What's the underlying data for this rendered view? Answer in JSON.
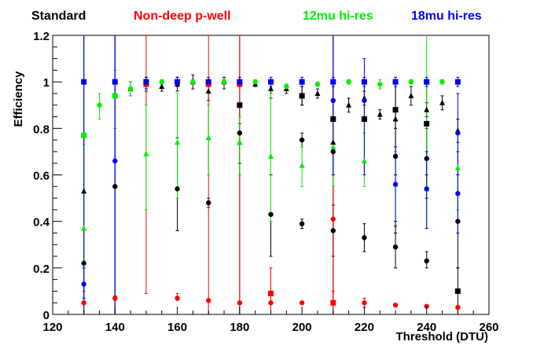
{
  "chart_data": {
    "type": "scatter",
    "xlabel": "Threshold (DTU)",
    "ylabel": "Efficiency",
    "xlim": [
      120,
      260
    ],
    "ylim": [
      0,
      1.2
    ],
    "x_ticks": [
      "120",
      "140",
      "160",
      "180",
      "200",
      "220",
      "240",
      "260"
    ],
    "y_ticks": [
      "0",
      "0.2",
      "0.4",
      "0.6",
      "0.8",
      "1",
      "1.2"
    ],
    "grid": false,
    "legend_position": "top",
    "series": [
      {
        "name": "Standard",
        "color": "#000000",
        "points": [
          {
            "x": 130,
            "y": 0.22,
            "lo": 0.0,
            "hi": 1.2,
            "marker": "circle"
          },
          {
            "x": 140,
            "y": 0.55,
            "lo": 0.0,
            "hi": 1.2,
            "marker": "circle"
          },
          {
            "x": 160,
            "y": 0.54,
            "lo": 0.36,
            "hi": 0.76,
            "marker": "circle"
          },
          {
            "x": 170,
            "y": 0.48,
            "lo": 0.46,
            "hi": 0.5,
            "marker": "circle"
          },
          {
            "x": 180,
            "y": 0.78,
            "lo": 0.6,
            "hi": 0.9,
            "marker": "circle"
          },
          {
            "x": 190,
            "y": 0.43,
            "lo": 0.25,
            "hi": 0.6,
            "marker": "circle"
          },
          {
            "x": 200,
            "y": 0.75,
            "lo": 0.72,
            "hi": 0.78,
            "marker": "circle"
          },
          {
            "x": 200,
            "y": 0.39,
            "lo": 0.37,
            "hi": 0.41,
            "marker": "circle"
          },
          {
            "x": 210,
            "y": 0.7,
            "lo": 0.0,
            "hi": 1.2,
            "marker": "circle"
          },
          {
            "x": 210,
            "y": 0.36,
            "lo": 0.25,
            "hi": 0.47,
            "marker": "circle"
          },
          {
            "x": 220,
            "y": 0.33,
            "lo": 0.27,
            "hi": 0.39,
            "marker": "circle"
          },
          {
            "x": 230,
            "y": 0.68,
            "lo": 0.35,
            "hi": 1.0,
            "marker": "circle"
          },
          {
            "x": 230,
            "y": 0.29,
            "lo": 0.2,
            "hi": 0.38,
            "marker": "circle"
          },
          {
            "x": 240,
            "y": 0.67,
            "lo": 0.5,
            "hi": 0.8,
            "marker": "circle"
          },
          {
            "x": 240,
            "y": 0.23,
            "lo": 0.2,
            "hi": 0.27,
            "marker": "circle"
          },
          {
            "x": 250,
            "y": 0.4,
            "lo": 0.2,
            "hi": 0.6,
            "marker": "circle"
          },
          {
            "x": 130,
            "y": 0.53,
            "lo": 0.0,
            "hi": 1.2,
            "marker": "triangle"
          },
          {
            "x": 145,
            "y": 0.97,
            "lo": 0.94,
            "hi": 1.0,
            "marker": "triangle"
          },
          {
            "x": 150,
            "y": 0.99,
            "lo": 0.97,
            "hi": 1.01,
            "marker": "triangle"
          },
          {
            "x": 155,
            "y": 0.98,
            "lo": 0.96,
            "hi": 1.0,
            "marker": "triangle"
          },
          {
            "x": 160,
            "y": 0.99,
            "lo": 0.96,
            "hi": 1.02,
            "marker": "triangle"
          },
          {
            "x": 165,
            "y": 1.0,
            "lo": 0.97,
            "hi": 1.03,
            "marker": "triangle"
          },
          {
            "x": 170,
            "y": 0.96,
            "lo": 0.92,
            "hi": 0.98,
            "marker": "triangle"
          },
          {
            "x": 175,
            "y": 1.0,
            "lo": 0.97,
            "hi": 1.02,
            "marker": "triangle"
          },
          {
            "x": 180,
            "y": 0.74,
            "lo": 0.65,
            "hi": 0.82,
            "marker": "triangle"
          },
          {
            "x": 185,
            "y": 0.99,
            "lo": 0.98,
            "hi": 1.0,
            "marker": "triangle"
          },
          {
            "x": 190,
            "y": 0.97,
            "lo": 0.93,
            "hi": 1.0,
            "marker": "triangle"
          },
          {
            "x": 195,
            "y": 0.97,
            "lo": 0.95,
            "hi": 0.99,
            "marker": "triangle"
          },
          {
            "x": 200,
            "y": 0.94,
            "lo": 0.9,
            "hi": 0.98,
            "marker": "triangle"
          },
          {
            "x": 205,
            "y": 0.95,
            "lo": 0.93,
            "hi": 0.97,
            "marker": "triangle"
          },
          {
            "x": 210,
            "y": 0.74,
            "lo": 0.6,
            "hi": 0.85,
            "marker": "triangle"
          },
          {
            "x": 215,
            "y": 0.9,
            "lo": 0.87,
            "hi": 0.93,
            "marker": "triangle"
          },
          {
            "x": 220,
            "y": 0.93,
            "lo": 0.9,
            "hi": 0.96,
            "marker": "triangle"
          },
          {
            "x": 225,
            "y": 0.86,
            "lo": 0.84,
            "hi": 0.88,
            "marker": "triangle"
          },
          {
            "x": 230,
            "y": 0.84,
            "lo": 0.8,
            "hi": 0.88,
            "marker": "triangle"
          },
          {
            "x": 235,
            "y": 0.94,
            "lo": 0.9,
            "hi": 0.98,
            "marker": "triangle"
          },
          {
            "x": 240,
            "y": 0.88,
            "lo": 0.85,
            "hi": 0.91,
            "marker": "triangle"
          },
          {
            "x": 245,
            "y": 0.91,
            "lo": 0.88,
            "hi": 0.94,
            "marker": "triangle"
          },
          {
            "x": 250,
            "y": 0.79,
            "lo": 0.74,
            "hi": 0.84,
            "marker": "triangle"
          },
          {
            "x": 150,
            "y": 1.0,
            "lo": 0.96,
            "hi": 1.02,
            "marker": "square"
          },
          {
            "x": 180,
            "y": 0.9,
            "lo": 0.0,
            "hi": 1.2,
            "marker": "square"
          },
          {
            "x": 200,
            "y": 0.94,
            "lo": 0.9,
            "hi": 0.98,
            "marker": "square"
          },
          {
            "x": 210,
            "y": 0.84,
            "lo": 0.6,
            "hi": 1.0,
            "marker": "square"
          },
          {
            "x": 220,
            "y": 0.84,
            "lo": 0.6,
            "hi": 1.0,
            "marker": "square"
          },
          {
            "x": 230,
            "y": 0.88,
            "lo": 0.6,
            "hi": 1.0,
            "marker": "square"
          },
          {
            "x": 240,
            "y": 0.82,
            "lo": 0.6,
            "hi": 1.0,
            "marker": "square"
          },
          {
            "x": 250,
            "y": 0.1,
            "lo": 0.0,
            "hi": 0.2,
            "marker": "square"
          }
        ]
      },
      {
        "name": "Non-deep p-well",
        "color": "#ff0000",
        "points": [
          {
            "x": 130,
            "y": 0.05,
            "lo": 0.0,
            "hi": 0.1,
            "marker": "circle"
          },
          {
            "x": 140,
            "y": 0.07,
            "lo": 0.06,
            "hi": 0.08,
            "marker": "circle"
          },
          {
            "x": 160,
            "y": 0.07,
            "lo": 0.06,
            "hi": 0.09,
            "marker": "circle"
          },
          {
            "x": 170,
            "y": 0.06,
            "lo": 0.055,
            "hi": 0.065,
            "marker": "circle"
          },
          {
            "x": 180,
            "y": 0.05,
            "lo": 0.045,
            "hi": 0.055,
            "marker": "circle"
          },
          {
            "x": 190,
            "y": 0.05,
            "lo": 0.045,
            "hi": 0.055,
            "marker": "circle"
          },
          {
            "x": 200,
            "y": 0.05,
            "lo": 0.045,
            "hi": 0.055,
            "marker": "circle"
          },
          {
            "x": 210,
            "y": 0.41,
            "lo": 0.0,
            "hi": 1.2,
            "marker": "circle"
          },
          {
            "x": 220,
            "y": 0.05,
            "lo": 0.03,
            "hi": 0.07,
            "marker": "circle"
          },
          {
            "x": 230,
            "y": 0.04,
            "lo": 0.035,
            "hi": 0.045,
            "marker": "circle"
          },
          {
            "x": 240,
            "y": 0.035,
            "lo": 0.03,
            "hi": 0.04,
            "marker": "circle"
          },
          {
            "x": 250,
            "y": 0.03,
            "lo": 0.025,
            "hi": 0.035,
            "marker": "circle"
          },
          {
            "x": 150,
            "y": 0.99,
            "lo": 0.09,
            "hi": 1.2,
            "marker": "square"
          },
          {
            "x": 170,
            "y": 0.99,
            "lo": 0.0,
            "hi": 1.2,
            "marker": "square"
          },
          {
            "x": 180,
            "y": 0.99,
            "lo": 0.0,
            "hi": 1.2,
            "marker": "square"
          },
          {
            "x": 190,
            "y": 0.09,
            "lo": 0.0,
            "hi": 0.2,
            "marker": "square"
          },
          {
            "x": 210,
            "y": 0.05,
            "lo": 0.0,
            "hi": 0.1,
            "marker": "square"
          }
        ]
      },
      {
        "name": "12mu hi-res",
        "color": "#00ee00",
        "points": [
          {
            "x": 130,
            "y": 0.37,
            "lo": 0.0,
            "hi": 0.73,
            "marker": "triangle"
          },
          {
            "x": 150,
            "y": 0.69,
            "lo": 0.45,
            "hi": 0.9,
            "marker": "triangle"
          },
          {
            "x": 160,
            "y": 0.74,
            "lo": 0.5,
            "hi": 0.95,
            "marker": "triangle"
          },
          {
            "x": 170,
            "y": 0.76,
            "lo": 0.6,
            "hi": 0.9,
            "marker": "triangle"
          },
          {
            "x": 180,
            "y": 0.74,
            "lo": 0.6,
            "hi": 0.85,
            "marker": "triangle"
          },
          {
            "x": 190,
            "y": 0.68,
            "lo": 0.4,
            "hi": 0.95,
            "marker": "triangle"
          },
          {
            "x": 200,
            "y": 0.64,
            "lo": 0.55,
            "hi": 0.72,
            "marker": "triangle"
          },
          {
            "x": 210,
            "y": 0.72,
            "lo": 0.55,
            "hi": 0.85,
            "marker": "triangle"
          },
          {
            "x": 220,
            "y": 0.66,
            "lo": 0.55,
            "hi": 0.78,
            "marker": "triangle"
          },
          {
            "x": 230,
            "y": 0.56,
            "lo": 0.4,
            "hi": 0.7,
            "marker": "triangle"
          },
          {
            "x": 240,
            "y": 0.54,
            "lo": 0.37,
            "hi": 0.7,
            "marker": "triangle"
          },
          {
            "x": 250,
            "y": 0.63,
            "lo": 0.45,
            "hi": 0.78,
            "marker": "triangle"
          },
          {
            "x": 135,
            "y": 0.9,
            "lo": 0.84,
            "hi": 0.95,
            "marker": "circle"
          },
          {
            "x": 145,
            "y": 0.97,
            "lo": 0.94,
            "hi": 1.0,
            "marker": "circle"
          },
          {
            "x": 155,
            "y": 1.0,
            "lo": 0.99,
            "hi": 1.01,
            "marker": "circle"
          },
          {
            "x": 165,
            "y": 1.0,
            "lo": 0.99,
            "hi": 1.01,
            "marker": "circle"
          },
          {
            "x": 175,
            "y": 1.0,
            "lo": 0.99,
            "hi": 1.01,
            "marker": "circle"
          },
          {
            "x": 185,
            "y": 1.0,
            "lo": 0.99,
            "hi": 1.01,
            "marker": "circle"
          },
          {
            "x": 195,
            "y": 0.98,
            "lo": 0.97,
            "hi": 0.99,
            "marker": "circle"
          },
          {
            "x": 205,
            "y": 0.99,
            "lo": 0.98,
            "hi": 1.0,
            "marker": "circle"
          },
          {
            "x": 215,
            "y": 1.0,
            "lo": 0.99,
            "hi": 1.01,
            "marker": "circle"
          },
          {
            "x": 225,
            "y": 0.99,
            "lo": 0.97,
            "hi": 1.01,
            "marker": "circle"
          },
          {
            "x": 235,
            "y": 1.0,
            "lo": 0.99,
            "hi": 1.01,
            "marker": "circle"
          },
          {
            "x": 245,
            "y": 1.0,
            "lo": 0.99,
            "hi": 1.01,
            "marker": "circle"
          },
          {
            "x": 130,
            "y": 0.77,
            "lo": 0.0,
            "hi": 1.2,
            "marker": "square"
          },
          {
            "x": 140,
            "y": 0.94,
            "lo": 0.8,
            "hi": 1.05,
            "marker": "square"
          },
          {
            "x": 240,
            "y": 1.0,
            "lo": 0.37,
            "hi": 1.2,
            "marker": "square"
          }
        ]
      },
      {
        "name": "18mu hi-res",
        "color": "#0000ee",
        "points": [
          {
            "x": 130,
            "y": 1.0,
            "lo": 0.0,
            "hi": 1.2,
            "marker": "square"
          },
          {
            "x": 140,
            "y": 1.0,
            "lo": 0.0,
            "hi": 1.2,
            "marker": "square"
          },
          {
            "x": 150,
            "y": 1.0,
            "lo": 0.97,
            "hi": 1.02,
            "marker": "square"
          },
          {
            "x": 160,
            "y": 1.0,
            "lo": 0.98,
            "hi": 1.02,
            "marker": "square"
          },
          {
            "x": 170,
            "y": 1.0,
            "lo": 0.98,
            "hi": 1.02,
            "marker": "square"
          },
          {
            "x": 180,
            "y": 1.0,
            "lo": 0.98,
            "hi": 1.02,
            "marker": "square"
          },
          {
            "x": 190,
            "y": 1.0,
            "lo": 0.98,
            "hi": 1.02,
            "marker": "square"
          },
          {
            "x": 200,
            "y": 1.0,
            "lo": 0.98,
            "hi": 1.02,
            "marker": "square"
          },
          {
            "x": 210,
            "y": 1.0,
            "lo": 0.98,
            "hi": 1.02,
            "marker": "square"
          },
          {
            "x": 220,
            "y": 1.0,
            "lo": 0.98,
            "hi": 1.02,
            "marker": "square"
          },
          {
            "x": 230,
            "y": 1.0,
            "lo": 0.98,
            "hi": 1.02,
            "marker": "square"
          },
          {
            "x": 240,
            "y": 1.0,
            "lo": 0.98,
            "hi": 1.02,
            "marker": "square"
          },
          {
            "x": 250,
            "y": 1.0,
            "lo": 0.98,
            "hi": 1.02,
            "marker": "square"
          },
          {
            "x": 130,
            "y": 0.13,
            "lo": 0.07,
            "hi": 0.2,
            "marker": "circle"
          },
          {
            "x": 140,
            "y": 0.66,
            "lo": 0.0,
            "hi": 1.2,
            "marker": "circle"
          },
          {
            "x": 210,
            "y": 0.92,
            "lo": 0.6,
            "hi": 1.2,
            "marker": "circle"
          },
          {
            "x": 220,
            "y": 0.92,
            "lo": 0.6,
            "hi": 1.1,
            "marker": "circle"
          },
          {
            "x": 230,
            "y": 0.56,
            "lo": 0.4,
            "hi": 0.72,
            "marker": "circle"
          },
          {
            "x": 240,
            "y": 0.54,
            "lo": 0.37,
            "hi": 0.7,
            "marker": "circle"
          },
          {
            "x": 250,
            "y": 0.52,
            "lo": 0.35,
            "hi": 0.7,
            "marker": "circle"
          },
          {
            "x": 250,
            "y": 0.78,
            "lo": 0.6,
            "hi": 0.95,
            "marker": "circle"
          }
        ]
      }
    ]
  }
}
